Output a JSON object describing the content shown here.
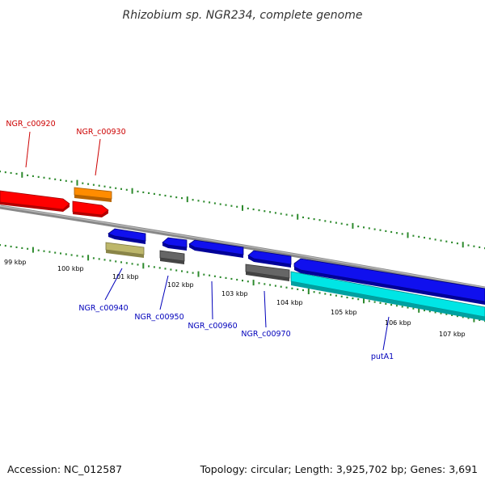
{
  "title": "Rhizobium sp. NGR234, complete genome",
  "accession": "Accession: NC_012587",
  "summary": "Topology: circular; Length: 3,925,702 bp; Genes: 3,691",
  "colors": {
    "backbone": "#888888",
    "tick": "#2d8a2d",
    "forward_label": "#cc0000",
    "reverse_label": "#0000bb",
    "red_gene": "#ff0000",
    "orange_gene": "#ff8c00",
    "blue_gene": "#1010ee",
    "khaki_gene": "#bdb76b",
    "gray_gene": "#666666",
    "cyan_gene": "#00e5e5"
  },
  "ticks": [
    "99 kbp",
    "100 kbp",
    "101 kbp",
    "102 kbp",
    "103 kbp",
    "104 kbp",
    "105 kbp",
    "106 kbp",
    "107 kbp"
  ],
  "genes": [
    {
      "label": "NGR_c00920",
      "strand": "forward",
      "color": "red_gene"
    },
    {
      "label": "NGR_c00930",
      "strand": "forward",
      "color": "orange_gene"
    },
    {
      "label": "NGR_c00940",
      "strand": "reverse",
      "color": "blue_gene"
    },
    {
      "label": "NGR_c00950",
      "strand": "reverse",
      "color": "gray_gene"
    },
    {
      "label": "NGR_c00960",
      "strand": "reverse",
      "color": "blue_gene"
    },
    {
      "label": "NGR_c00970",
      "strand": "reverse",
      "color": "blue_gene"
    },
    {
      "label": "putA1",
      "strand": "reverse",
      "color": "cyan_gene"
    }
  ]
}
